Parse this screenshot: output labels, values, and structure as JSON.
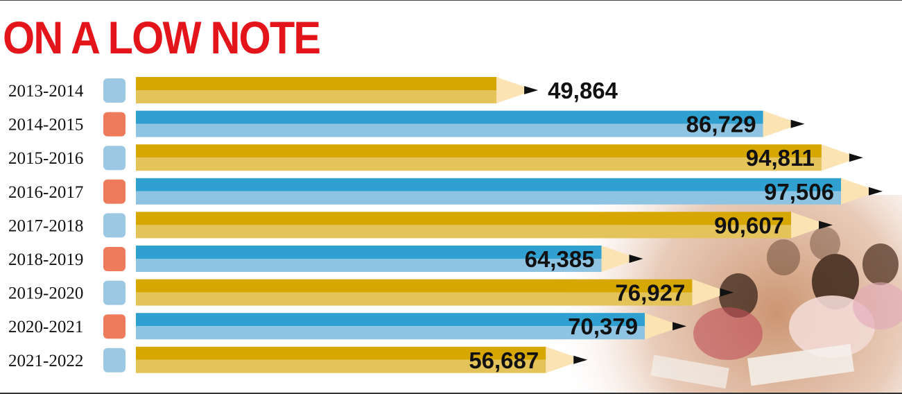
{
  "title": "ON A LOW NOTE",
  "chart_data": {
    "type": "bar",
    "orientation": "horizontal",
    "title": "ON A LOW NOTE",
    "categories": [
      "2013-2014",
      "2014-2015",
      "2015-2016",
      "2016-2017",
      "2017-2018",
      "2018-2019",
      "2019-2020",
      "2020-2021",
      "2021-2022"
    ],
    "values": [
      49864,
      86729,
      94811,
      97506,
      90607,
      64385,
      76927,
      70379,
      56687
    ],
    "value_labels": [
      "49,864",
      "86,729",
      "94,811",
      "97,506",
      "90,607",
      "64,385",
      "76,927",
      "70,379",
      "56,687"
    ],
    "xlabel": "",
    "ylabel": "",
    "grid": false,
    "legend": "none"
  },
  "colors": {
    "title": "#e3151a",
    "gold_dark": "#d6a700",
    "gold_light": "#e4c35a",
    "blue_dark": "#2fa0d0",
    "blue_light": "#8fc3e2",
    "eraser_blue": "#9cc8e4",
    "eraser_orange": "#ee7c5c",
    "wood": "#fbe3b3",
    "lead": "#111111"
  }
}
